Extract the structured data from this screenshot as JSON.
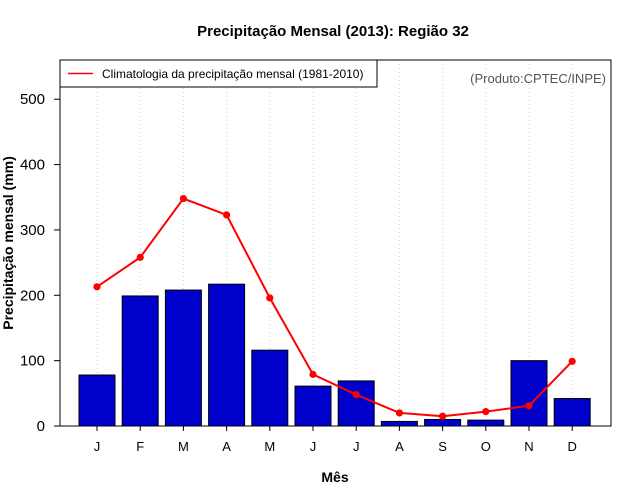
{
  "chart_data": {
    "type": "bar",
    "title": "Precipitação Mensal (2013): Região 32",
    "xlabel": "Mês",
    "ylabel": "Precipitação mensal (mm)",
    "ylim": [
      0,
      560
    ],
    "yticks": [
      0,
      100,
      200,
      300,
      400,
      500
    ],
    "categories": [
      "J",
      "F",
      "M",
      "A",
      "M",
      "J",
      "J",
      "A",
      "S",
      "O",
      "N",
      "D"
    ],
    "series": [
      {
        "name": "Precipitação mensal 2013",
        "kind": "bar",
        "color": "#0000CD",
        "values": [
          78,
          199,
          208,
          217,
          116,
          61,
          69,
          7,
          10,
          9,
          100,
          42
        ]
      },
      {
        "name": "Climatologia da precipitação mensal (1981-2010)",
        "kind": "line",
        "color": "#FF0000",
        "values": [
          213,
          258,
          348,
          323,
          196,
          79,
          48,
          20,
          15,
          22,
          31,
          99
        ]
      }
    ],
    "legend": {
      "entries": [
        "Climatologia da precipitação mensal (1981-2010)"
      ],
      "placement": "top-left"
    },
    "annotation": "(Produto:CPTEC/INPE)",
    "grid": {
      "vertical": true,
      "horizontal": false
    }
  }
}
